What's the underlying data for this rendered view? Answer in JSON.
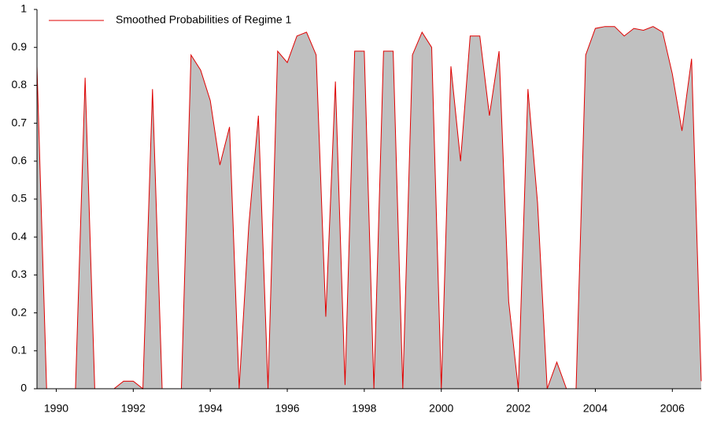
{
  "chart_data": {
    "type": "area",
    "series": [
      {
        "name": "Smoothed Probabilities of Regime 1",
        "color": "#e00000",
        "fill": "#c0c0c0",
        "x": [
          1989.5,
          1989.75,
          1990,
          1990.25,
          1990.5,
          1990.75,
          1991,
          1991.25,
          1991.5,
          1991.75,
          1992,
          1992.25,
          1992.5,
          1992.75,
          1993,
          1993.25,
          1993.5,
          1993.75,
          1994,
          1994.25,
          1994.5,
          1994.75,
          1995,
          1995.25,
          1995.5,
          1995.75,
          1996,
          1996.25,
          1996.5,
          1996.75,
          1997,
          1997.25,
          1997.5,
          1997.75,
          1998,
          1998.25,
          1998.5,
          1998.75,
          1999,
          1999.25,
          1999.5,
          1999.75,
          2000,
          2000.25,
          2000.5,
          2000.75,
          2001,
          2001.25,
          2001.5,
          2001.75,
          2002,
          2002.25,
          2002.5,
          2002.75,
          2003,
          2003.25,
          2003.5,
          2003.75,
          2004,
          2004.25,
          2004.5,
          2004.75,
          2005,
          2005.25,
          2005.5,
          2005.75,
          2006,
          2006.25,
          2006.5,
          2006.75
        ],
        "values": [
          0.85,
          0,
          0,
          0,
          0,
          0.82,
          0,
          0,
          0,
          0.02,
          0.02,
          0,
          0.79,
          0,
          0,
          0,
          0.88,
          0.84,
          0.76,
          0.59,
          0.69,
          0,
          0.43,
          0.72,
          0,
          0.89,
          0.86,
          0.93,
          0.94,
          0.88,
          0.19,
          0.81,
          0.01,
          0.89,
          0.89,
          0,
          0.89,
          0.89,
          0,
          0.88,
          0.94,
          0.9,
          0,
          0.85,
          0.6,
          0.93,
          0.93,
          0.72,
          0.89,
          0.23,
          0,
          0.79,
          0.49,
          0,
          0.07,
          0,
          0,
          0.88,
          0.95,
          0.955,
          0.955,
          0.93,
          0.95,
          0.945,
          0.955,
          0.94,
          0.83,
          0.68,
          0.87,
          0.02
        ]
      }
    ],
    "xlim": [
      1989.5,
      2006.75
    ],
    "xticks": [
      1990,
      1992,
      1994,
      1996,
      1998,
      2000,
      2002,
      2004,
      2006
    ],
    "ylim": [
      0,
      1
    ],
    "yticks": [
      0,
      0.1,
      0.2,
      0.3,
      0.4,
      0.5,
      0.6,
      0.7,
      0.8,
      0.9,
      1
    ],
    "legend": "top-left"
  }
}
